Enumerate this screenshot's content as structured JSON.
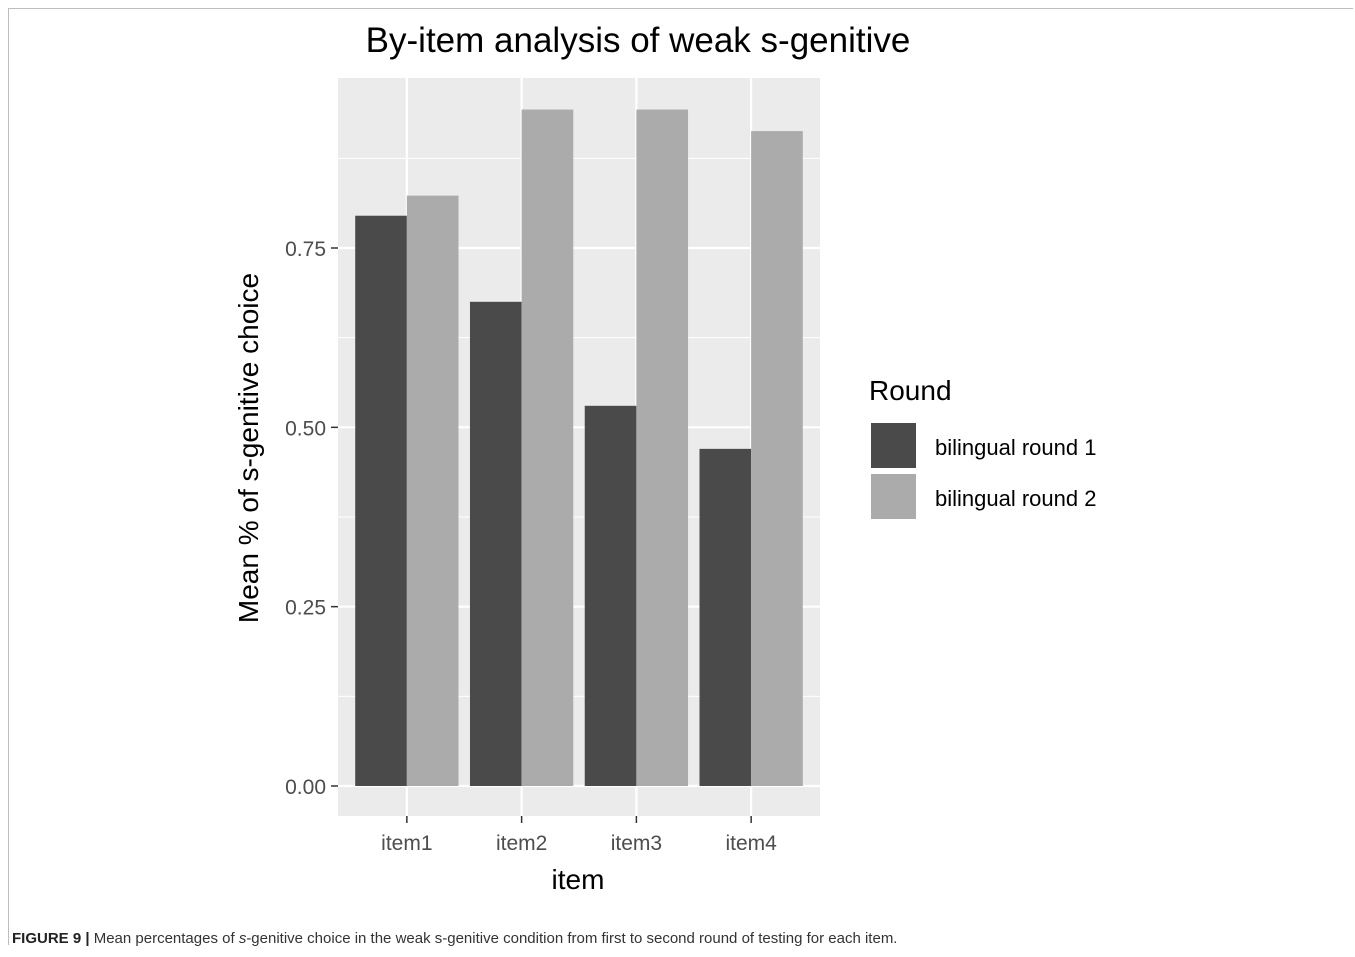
{
  "chart_data": {
    "type": "bar",
    "title": "By-item analysis of weak s-genitive",
    "xlabel": "item",
    "ylabel": "Mean % of s-genitive choice",
    "categories": [
      "item1",
      "item2",
      "item3",
      "item4"
    ],
    "series": [
      {
        "name": "bilingual round 1",
        "values": [
          0.795,
          0.675,
          0.53,
          0.47
        ]
      },
      {
        "name": "bilingual round 2",
        "values": [
          0.823,
          0.943,
          0.943,
          0.913
        ]
      }
    ],
    "ylim": [
      0,
      1.0
    ],
    "yticks": [
      0.0,
      0.25,
      0.5,
      0.75
    ],
    "ytick_labels": [
      "0.00",
      "0.25",
      "0.50",
      "0.75"
    ],
    "grid": true,
    "legend": {
      "title": "Round",
      "placement": "right"
    }
  },
  "colors": {
    "panel": "#ebebeb",
    "grid": "#ffffff",
    "series": [
      "#4a4a4a",
      "#ababab"
    ]
  },
  "caption": {
    "label": "FIGURE 9 |",
    "text_before": " Mean percentages of ",
    "italic": "s",
    "text_after": "-genitive choice in the weak s-genitive condition from first to second round of testing for each item."
  }
}
